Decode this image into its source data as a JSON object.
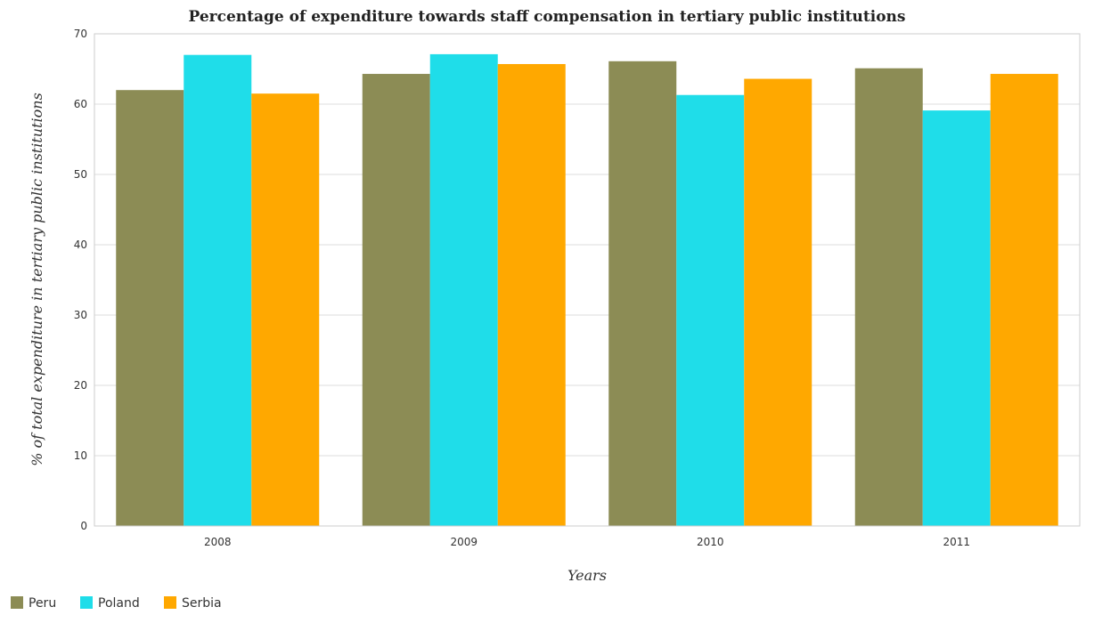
{
  "chart_data": {
    "type": "bar",
    "title": "Percentage of expenditure towards staff compensation in tertiary public institutions",
    "xlabel": "Years",
    "ylabel": "% of total expenditure in tertiary public institutions",
    "categories": [
      "2008",
      "2009",
      "2010",
      "2011"
    ],
    "series": [
      {
        "name": "Peru",
        "color": "#8c8c55",
        "values": [
          62.0,
          64.3,
          66.1,
          65.1
        ]
      },
      {
        "name": "Poland",
        "color": "#1fdde9",
        "values": [
          67.0,
          67.1,
          61.3,
          59.1
        ]
      },
      {
        "name": "Serbia",
        "color": "#ffa800",
        "values": [
          61.5,
          65.7,
          63.6,
          64.3
        ]
      }
    ],
    "ylim": [
      0,
      70
    ],
    "yticks": [
      0,
      10,
      20,
      30,
      40,
      50,
      60,
      70
    ],
    "grid": true,
    "legend_position": "bottom-left"
  }
}
